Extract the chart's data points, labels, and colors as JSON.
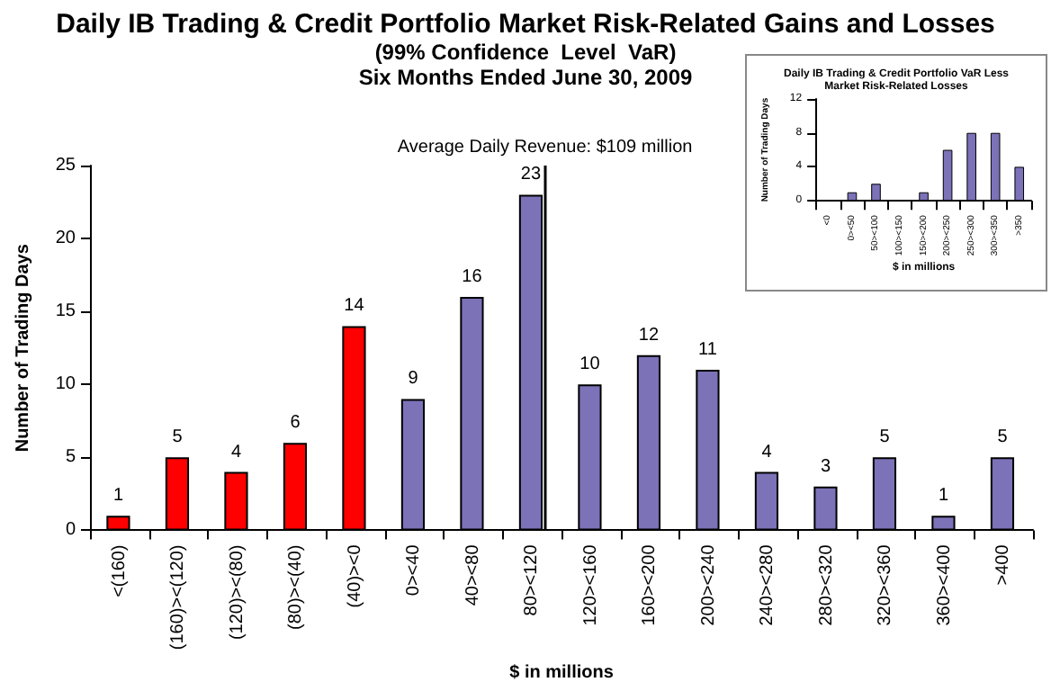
{
  "chart_data": [
    {
      "type": "bar",
      "title": "Daily IB Trading & Credit Portfolio Market Risk-Related Gains and Losses",
      "subtitle": "(99% Confidence  Level  VaR)\nSix Months Ended June 30, 2009",
      "xlabel": "$ in millions",
      "ylabel": "Number of Trading Days",
      "categories": [
        "<(160)",
        "(160)><(120)",
        "(120)><(80)",
        "(80)><(40)",
        "(40)><0",
        "0><40",
        "40><80",
        "80><120",
        "120><160",
        "160><200",
        "200><240",
        "240><280",
        "280><320",
        "320><360",
        "360><400",
        ">400"
      ],
      "values": [
        1,
        5,
        4,
        6,
        14,
        9,
        16,
        23,
        10,
        12,
        11,
        4,
        3,
        5,
        1,
        5
      ],
      "colors": [
        "#ff0000",
        "#ff0000",
        "#ff0000",
        "#ff0000",
        "#ff0000",
        "#7b72b8",
        "#7b72b8",
        "#7b72b8",
        "#7b72b8",
        "#7b72b8",
        "#7b72b8",
        "#7b72b8",
        "#7b72b8",
        "#7b72b8",
        "#7b72b8",
        "#7b72b8"
      ],
      "ylim": [
        0,
        25
      ],
      "yticks": [
        0,
        5,
        10,
        15,
        20,
        25
      ],
      "data_labels": true,
      "ref_lines": [
        {
          "axis": "x",
          "value": "80><120",
          "label": "Average Daily Revenue: $109 million",
          "color": "#000000"
        }
      ]
    },
    {
      "type": "bar",
      "title": "Daily IB Trading & Credit Portfolio VaR Less\nMarket Risk-Related Losses",
      "xlabel": "$ in millions",
      "ylabel": "Number of Trading Days",
      "categories": [
        "<0",
        "0><50",
        "50><100",
        "100><150",
        "150><200",
        "200><250",
        "250><300",
        "300><350",
        ">350"
      ],
      "values": [
        0,
        1,
        2,
        0,
        1,
        6,
        8,
        8,
        4
      ],
      "color": "#7b72b8",
      "ylim": [
        0,
        12
      ],
      "yticks": [
        0,
        4,
        8,
        12
      ]
    }
  ]
}
